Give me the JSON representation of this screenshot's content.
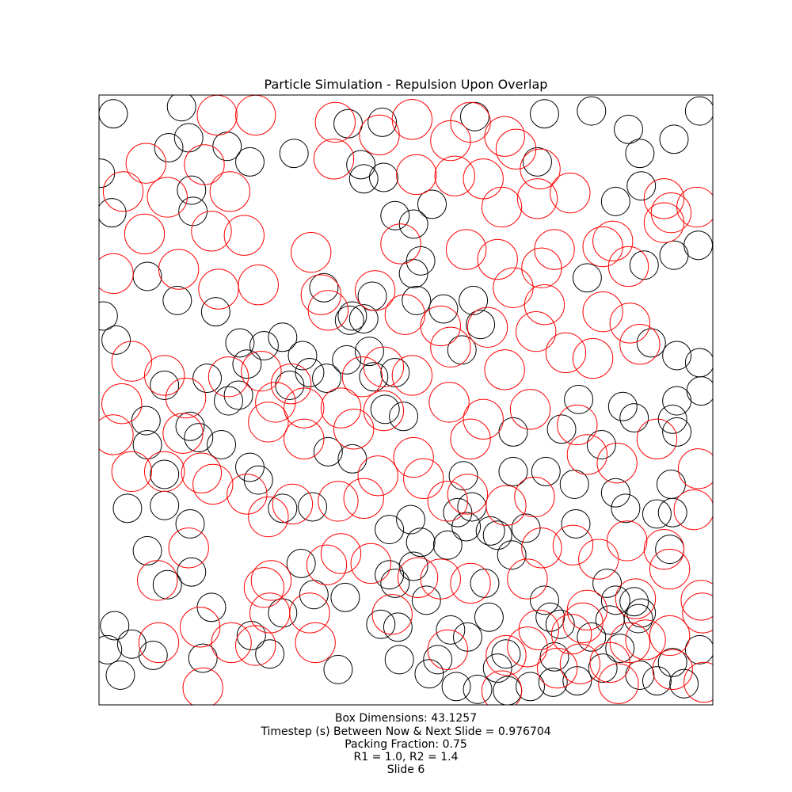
{
  "chart_data": {
    "type": "scatter",
    "title": "Particle Simulation - Repulsion Upon Overlap",
    "xlim": [
      0,
      43.1257
    ],
    "ylim": [
      0,
      43.1257
    ],
    "ticks_visible": false,
    "grid": false,
    "captions": [
      "Box Dimensions: 43.1257",
      "Timestep (s) Between Now & Next Slide = 0.976704",
      "Packing Fraction: 0.75",
      "R1 = 1.0, R2 = 1.4",
      "Slide 6"
    ],
    "colors": {
      "small": "#000000",
      "large": "#ff0000",
      "frame": "#000000"
    },
    "series": [
      {
        "radius": 1.0,
        "color": "#000000",
        "points": [
          [
            1.0,
            41.8
          ],
          [
            5.8,
            42.3
          ],
          [
            6.3,
            40.1
          ],
          [
            4.9,
            39.4
          ],
          [
            9.0,
            39.5
          ],
          [
            10.6,
            38.4
          ],
          [
            0.1,
            37.6
          ],
          [
            6.5,
            36.4
          ],
          [
            6.6,
            34.9
          ],
          [
            13.7,
            39.0
          ],
          [
            17.5,
            41.1
          ],
          [
            19.9,
            41.2
          ],
          [
            18.4,
            38.2
          ],
          [
            18.6,
            37.2
          ],
          [
            15.8,
            29.5
          ],
          [
            20.0,
            37.3
          ],
          [
            20.8,
            34.6
          ],
          [
            22.1,
            34.0
          ],
          [
            23.4,
            35.4
          ],
          [
            26.4,
            41.6
          ],
          [
            31.3,
            41.8
          ],
          [
            30.8,
            38.4
          ],
          [
            34.6,
            42.0
          ],
          [
            37.2,
            40.7
          ],
          [
            38.0,
            39.0
          ],
          [
            38.1,
            36.7
          ],
          [
            40.4,
            40.0
          ],
          [
            42.2,
            42.0
          ],
          [
            36.3,
            35.6
          ],
          [
            42.1,
            32.5
          ],
          [
            40.4,
            31.8
          ],
          [
            0.9,
            34.8
          ],
          [
            3.4,
            30.3
          ],
          [
            5.5,
            28.6
          ],
          [
            8.2,
            27.8
          ],
          [
            9.9,
            25.6
          ],
          [
            10.4,
            24.1
          ],
          [
            0.3,
            27.5
          ],
          [
            1.2,
            25.8
          ],
          [
            7.6,
            23.1
          ],
          [
            9.8,
            21.9
          ],
          [
            11.6,
            25.4
          ],
          [
            12.9,
            26.0
          ],
          [
            14.3,
            24.7
          ],
          [
            13.4,
            22.6
          ],
          [
            14.8,
            23.5
          ],
          [
            16.0,
            23.1
          ],
          [
            17.8,
            27.5
          ],
          [
            19.2,
            28.9
          ],
          [
            18.6,
            27.3
          ],
          [
            17.6,
            27.2
          ],
          [
            19.0,
            25.0
          ],
          [
            17.4,
            24.4
          ],
          [
            19.3,
            23.2
          ],
          [
            20.8,
            23.5
          ],
          [
            20.1,
            20.9
          ],
          [
            21.4,
            20.4
          ],
          [
            22.3,
            28.6
          ],
          [
            22.1,
            30.5
          ],
          [
            22.6,
            31.4
          ],
          [
            24.2,
            28.0
          ],
          [
            26.3,
            28.6
          ],
          [
            26.8,
            26.9
          ],
          [
            25.5,
            25.1
          ],
          [
            34.3,
            30.2
          ],
          [
            38.3,
            31.1
          ],
          [
            38.8,
            25.6
          ],
          [
            40.6,
            24.7
          ],
          [
            42.2,
            24.2
          ],
          [
            42.3,
            22.2
          ],
          [
            40.6,
            21.5
          ],
          [
            36.8,
            21.1
          ],
          [
            37.6,
            20.3
          ],
          [
            40.3,
            20.2
          ],
          [
            40.6,
            19.3
          ],
          [
            33.7,
            21.6
          ],
          [
            32.5,
            19.5
          ],
          [
            29.1,
            19.3
          ],
          [
            29.1,
            16.5
          ],
          [
            31.4,
            16.5
          ],
          [
            35.3,
            18.4
          ],
          [
            33.4,
            15.6
          ],
          [
            36.3,
            15.0
          ],
          [
            37.0,
            13.9
          ],
          [
            40.2,
            15.6
          ],
          [
            40.3,
            13.6
          ],
          [
            39.2,
            13.5
          ],
          [
            33.5,
            12.8
          ],
          [
            30.0,
            12.5
          ],
          [
            27.5,
            12.3
          ],
          [
            26.2,
            14.0
          ],
          [
            25.6,
            16.2
          ],
          [
            22.1,
            9.8
          ],
          [
            22.6,
            11.5
          ],
          [
            24.5,
            11.3
          ],
          [
            25.8,
            12.6
          ],
          [
            25.2,
            13.6
          ],
          [
            21.9,
            13.1
          ],
          [
            20.4,
            12.4
          ],
          [
            17.8,
            17.4
          ],
          [
            16.1,
            17.9
          ],
          [
            15.0,
            14.0
          ],
          [
            12.9,
            13.9
          ],
          [
            11.2,
            15.9
          ],
          [
            10.6,
            16.8
          ],
          [
            8.6,
            18.4
          ],
          [
            9.1,
            21.5
          ],
          [
            7.0,
            18.9
          ],
          [
            6.4,
            19.7
          ],
          [
            3.3,
            20.1
          ],
          [
            4.6,
            22.6
          ],
          [
            3.4,
            18.4
          ],
          [
            4.6,
            16.3
          ],
          [
            2.0,
            13.9
          ],
          [
            4.6,
            14.1
          ],
          [
            6.4,
            12.8
          ],
          [
            3.4,
            10.9
          ],
          [
            6.5,
            9.4
          ],
          [
            4.8,
            8.5
          ],
          [
            1.1,
            5.6
          ],
          [
            2.3,
            4.3
          ],
          [
            0.6,
            3.9
          ],
          [
            1.5,
            2.1
          ],
          [
            3.8,
            3.5
          ],
          [
            7.3,
            3.3
          ],
          [
            7.9,
            6.9
          ],
          [
            10.7,
            4.9
          ],
          [
            12.9,
            6.5
          ],
          [
            12.0,
            3.6
          ],
          [
            16.8,
            2.5
          ],
          [
            15.1,
            7.8
          ],
          [
            14.2,
            10.0
          ],
          [
            17.3,
            7.6
          ],
          [
            19.8,
            5.7
          ],
          [
            20.8,
            8.6
          ],
          [
            21.1,
            3.2
          ],
          [
            21.0,
            5.5
          ],
          [
            20.4,
            9.2
          ],
          [
            23.0,
            7.4
          ],
          [
            27.4,
            6.2
          ],
          [
            25.9,
            4.8
          ],
          [
            23.8,
            3.2
          ],
          [
            24.7,
            5.3
          ],
          [
            23.2,
            2.2
          ],
          [
            25.1,
            1.3
          ],
          [
            26.6,
            1.1
          ],
          [
            27.1,
            8.6
          ],
          [
            29.0,
            10.6
          ],
          [
            28.0,
            12.0
          ],
          [
            31.3,
            7.4
          ],
          [
            31.7,
            6.2
          ],
          [
            28.6,
            3.6
          ],
          [
            28.0,
            2.6
          ],
          [
            28.7,
            1.0
          ],
          [
            30.3,
            1.3
          ],
          [
            31.9,
            1.6
          ],
          [
            33.6,
            1.7
          ],
          [
            32.0,
            3.4
          ],
          [
            32.4,
            5.7
          ],
          [
            34.6,
            4.8
          ],
          [
            35.7,
            8.6
          ],
          [
            36.3,
            7.4
          ],
          [
            37.6,
            7.3
          ],
          [
            35.9,
            6.0
          ],
          [
            36.6,
            4.0
          ],
          [
            38.0,
            2.1
          ],
          [
            39.2,
            1.7
          ],
          [
            41.1,
            1.5
          ],
          [
            42.2,
            3.9
          ],
          [
            40.3,
            3.0
          ],
          [
            35.4,
            2.6
          ],
          [
            37.9,
            6.1
          ],
          [
            40.1,
            11.0
          ],
          [
            38.1,
            6.5
          ]
        ]
      },
      {
        "radius": 1.4,
        "color": "#ff0000",
        "points": [
          [
            8.3,
            41.7
          ],
          [
            11.0,
            41.7
          ],
          [
            16.6,
            41.2
          ],
          [
            19.7,
            40.3
          ],
          [
            22.0,
            41.4
          ],
          [
            24.7,
            39.9
          ],
          [
            26.1,
            41.2
          ],
          [
            28.5,
            40.2
          ],
          [
            29.3,
            39.3
          ],
          [
            31.0,
            37.9
          ],
          [
            3.3,
            38.3
          ],
          [
            7.4,
            38.2
          ],
          [
            1.7,
            36.3
          ],
          [
            4.8,
            35.9
          ],
          [
            9.2,
            36.3
          ],
          [
            16.5,
            38.6
          ],
          [
            22.3,
            37.5
          ],
          [
            25.0,
            37.4
          ],
          [
            27.0,
            37.2
          ],
          [
            28.3,
            35.2
          ],
          [
            30.8,
            35.8
          ],
          [
            33.1,
            36.2
          ],
          [
            36.1,
            32.8
          ],
          [
            37.2,
            31.0
          ],
          [
            39.7,
            35.8
          ],
          [
            40.2,
            34.8
          ],
          [
            42.0,
            35.2
          ],
          [
            3.2,
            33.3
          ],
          [
            7.9,
            33.5
          ],
          [
            10.2,
            33.2
          ],
          [
            14.9,
            32.0
          ],
          [
            21.2,
            32.6
          ],
          [
            25.8,
            32.2
          ],
          [
            28.0,
            31.5
          ],
          [
            31.1,
            30.9
          ],
          [
            32.0,
            32.2
          ],
          [
            35.4,
            32.4
          ],
          [
            39.7,
            34.1
          ],
          [
            1.0,
            30.5
          ],
          [
            5.6,
            30.8
          ],
          [
            8.4,
            29.4
          ],
          [
            11.2,
            29.7
          ],
          [
            15.6,
            29.0
          ],
          [
            16.1,
            27.9
          ],
          [
            19.4,
            29.3
          ],
          [
            21.5,
            27.6
          ],
          [
            24.0,
            26.8
          ],
          [
            27.3,
            26.7
          ],
          [
            29.1,
            29.5
          ],
          [
            31.3,
            28.3
          ],
          [
            35.4,
            27.8
          ],
          [
            37.3,
            27.0
          ],
          [
            38.0,
            25.5
          ],
          [
            34.7,
            24.5
          ],
          [
            32.8,
            24.9
          ],
          [
            30.7,
            26.4
          ],
          [
            28.5,
            23.7
          ],
          [
            24.7,
            25.3
          ],
          [
            22.0,
            23.3
          ],
          [
            20.0,
            23.9
          ],
          [
            18.5,
            23.2
          ],
          [
            17.0,
            21.0
          ],
          [
            14.4,
            21.0
          ],
          [
            13.5,
            22.7
          ],
          [
            11.4,
            23.6
          ],
          [
            9.1,
            23.2
          ],
          [
            6.1,
            21.7
          ],
          [
            2.3,
            24.3
          ],
          [
            4.6,
            23.3
          ],
          [
            1.6,
            21.3
          ],
          [
            1.0,
            19.1
          ],
          [
            5.9,
            19.2
          ],
          [
            11.9,
            20.0
          ],
          [
            12.4,
            21.4
          ],
          [
            14.4,
            18.8
          ],
          [
            17.9,
            19.5
          ],
          [
            20.0,
            20.8
          ],
          [
            24.6,
            21.4
          ],
          [
            27.0,
            20.2
          ],
          [
            26.1,
            18.8
          ],
          [
            30.3,
            20.9
          ],
          [
            33.6,
            19.8
          ],
          [
            34.3,
            17.7
          ],
          [
            36.4,
            17.1
          ],
          [
            39.2,
            18.8
          ],
          [
            42.1,
            16.7
          ],
          [
            22.1,
            17.5
          ],
          [
            19.6,
            16.2
          ],
          [
            18.6,
            14.6
          ],
          [
            16.8,
            14.4
          ],
          [
            13.6,
            14.2
          ],
          [
            10.4,
            14.9
          ],
          [
            7.2,
            16.4
          ],
          [
            4.6,
            16.5
          ],
          [
            2.3,
            16.5
          ],
          [
            8.0,
            15.6
          ],
          [
            11.9,
            13.3
          ],
          [
            22.8,
            16.0
          ],
          [
            24.5,
            14.4
          ],
          [
            25.9,
            14.9
          ],
          [
            28.6,
            14.1
          ],
          [
            30.6,
            14.7
          ],
          [
            31.1,
            11.1
          ],
          [
            33.3,
            11.3
          ],
          [
            35.1,
            10.3
          ],
          [
            37.1,
            11.6
          ],
          [
            39.7,
            11.0
          ],
          [
            41.8,
            13.8
          ],
          [
            37.7,
            7.5
          ],
          [
            40.1,
            9.6
          ],
          [
            42.3,
            7.4
          ],
          [
            34.3,
            6.7
          ],
          [
            34.0,
            5.8
          ],
          [
            30.1,
            8.9
          ],
          [
            33.2,
            5.0
          ],
          [
            35.9,
            3.0
          ],
          [
            38.4,
            4.6
          ],
          [
            40.1,
            4.9
          ],
          [
            42.4,
            6.5
          ],
          [
            36.5,
            1.5
          ],
          [
            33.8,
            2.9
          ],
          [
            32.2,
            2.6
          ],
          [
            28.6,
            3.5
          ],
          [
            30.1,
            4.1
          ],
          [
            28.3,
            1.0
          ],
          [
            24.5,
            3.9
          ],
          [
            20.6,
            6.4
          ],
          [
            22.4,
            9.0
          ],
          [
            19.1,
            10.0
          ],
          [
            17.0,
            10.7
          ],
          [
            24.0,
            8.9
          ],
          [
            26.1,
            8.6
          ],
          [
            30.9,
            5.3
          ],
          [
            37.3,
            4.4
          ],
          [
            40.3,
            2.5
          ],
          [
            42.5,
            1.6
          ],
          [
            12.0,
            6.5
          ],
          [
            11.0,
            4.2
          ],
          [
            11.6,
            8.3
          ],
          [
            7.1,
            5.5
          ],
          [
            4.1,
            8.8
          ],
          [
            6.3,
            11.1
          ],
          [
            4.2,
            4.4
          ],
          [
            7.3,
            1.2
          ],
          [
            9.3,
            4.4
          ],
          [
            12.1,
            8.8
          ],
          [
            16.0,
            9.9
          ],
          [
            14.8,
            6.5
          ],
          [
            15.2,
            4.4
          ]
        ]
      }
    ]
  }
}
